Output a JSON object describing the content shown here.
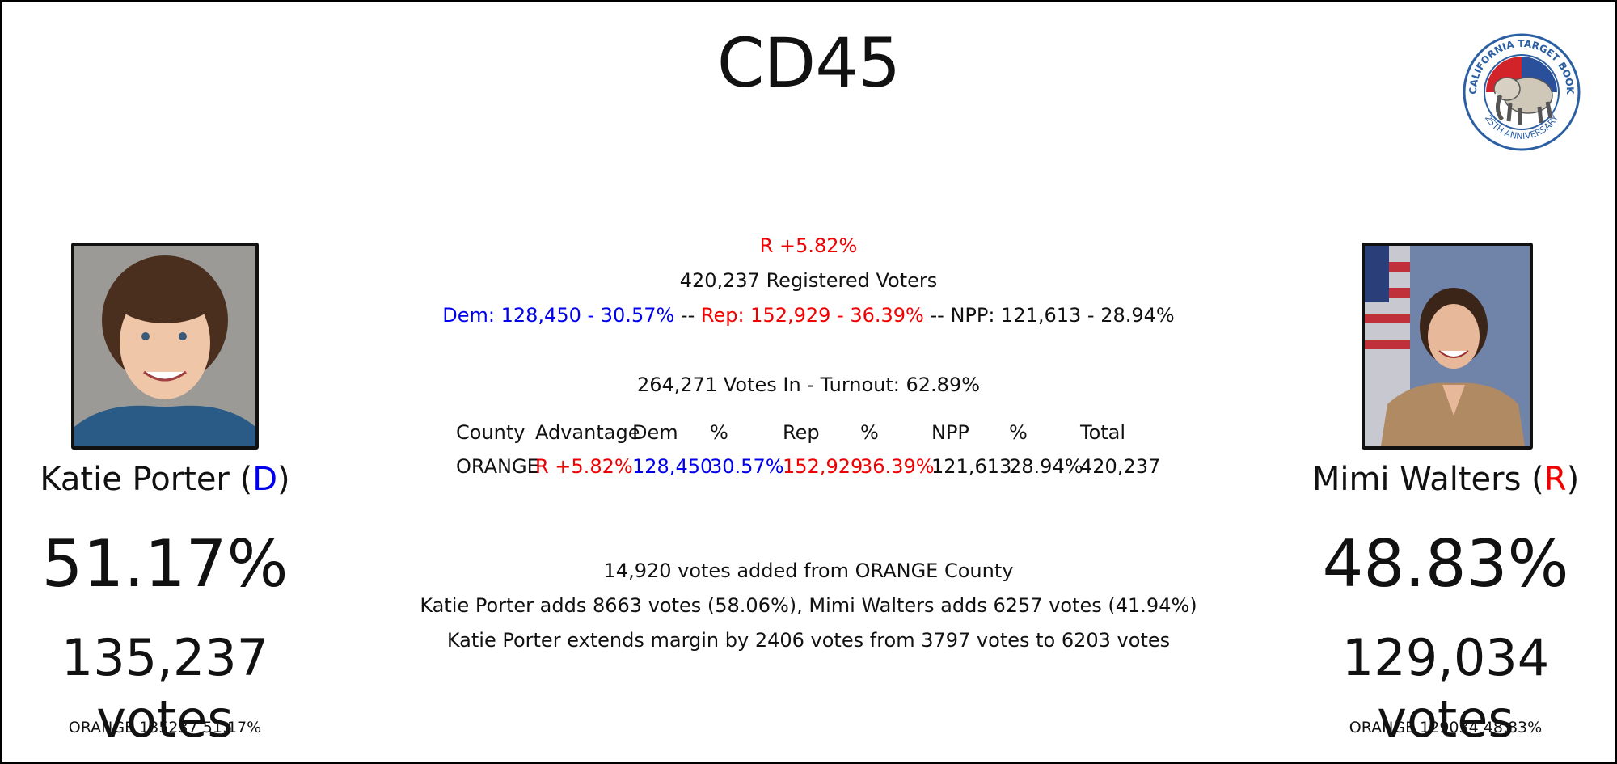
{
  "title": "CD45",
  "logo": {
    "icon": "elephant-seal-icon",
    "text_top": "CALIFORNIA TARGET BOOK",
    "text_bottom": "25TH ANNIVERSARY",
    "colors": {
      "red": "#d2232a",
      "blue": "#2a4f9b",
      "ring": "#2b5fa3"
    }
  },
  "candidates": {
    "left": {
      "name": "Katie Porter",
      "party_open": " (",
      "party": "D",
      "party_close": ")",
      "party_color": "#0000ee",
      "percent": "51.17%",
      "votes": "135,237 votes",
      "county_line": "ORANGE 135237 51.17%"
    },
    "right": {
      "name": "Mimi Walters",
      "party_open": " (",
      "party": "R",
      "party_close": ")",
      "party_color": "#f00000",
      "percent": "48.83%",
      "votes": "129,034 votes",
      "county_line": "ORANGE 129034 48.83%"
    }
  },
  "summary": {
    "advantage": "R +5.82%",
    "registered": "420,237 Registered Voters",
    "dem": "Dem: 128,450 - 30.57%",
    "sep1": " -- ",
    "rep": "Rep: 152,929 - 36.39%",
    "sep2": " -- ",
    "npp": "NPP: 121,613 - 28.94%",
    "turnout": "264,271 Votes In - Turnout: 62.89%"
  },
  "table": {
    "headers": [
      "County",
      "Advantage",
      "Dem",
      "%",
      "Rep",
      "%",
      "NPP",
      "%",
      "Total"
    ],
    "row": [
      "ORANGE",
      "R +5.82%",
      "128,450",
      "30.57%",
      "152,929",
      "36.39%",
      "121,613",
      "28.94%",
      "420,237"
    ]
  },
  "update": {
    "line1": "14,920 votes added from ORANGE County",
    "line2": "Katie Porter adds 8663 votes (58.06%), Mimi Walters adds 6257 votes (41.94%)",
    "line3": "Katie Porter extends margin by 2406 votes from 3797 votes to 6203 votes"
  }
}
